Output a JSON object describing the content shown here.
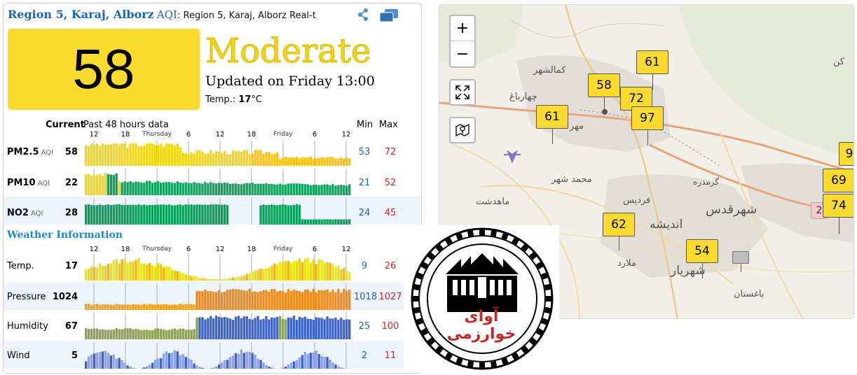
{
  "header": {
    "region": "Region 5, Karaj, Alborz",
    "aqi_suffix": "AQI",
    "colon": ":",
    "subtitle": "Region 5, Karaj, Alborz Real-t"
  },
  "aqi": {
    "value": "58",
    "level": "Moderate",
    "updated": "Updated on Friday 13:00",
    "temp_label": "Temp.:",
    "temp_value": "17",
    "temp_unit": "°C",
    "color": "#fbdb2f"
  },
  "columns": {
    "current": "Current",
    "past": "Past 48 hours data",
    "min": "Min",
    "max": "Max"
  },
  "axis": {
    "ticks": [
      "12",
      "18",
      "Thursday",
      "6",
      "12",
      "18",
      "Friday",
      "6",
      "12"
    ]
  },
  "pollutants": [
    {
      "name": "PM2.5",
      "unit": "AQI",
      "current": "58",
      "min": "53",
      "max": "72"
    },
    {
      "name": "PM10",
      "unit": "AQI",
      "current": "22",
      "min": "21",
      "max": "52"
    },
    {
      "name": "NO2",
      "unit": "AQI",
      "current": "28",
      "min": "24",
      "max": "45"
    }
  ],
  "weather_title": "Weather Information",
  "weather": [
    {
      "name": "Temp.",
      "current": "17",
      "min": "9",
      "max": "26"
    },
    {
      "name": "Pressure",
      "current": "1024",
      "min": "1018",
      "max": "1027"
    },
    {
      "name": "Humidity",
      "current": "67",
      "min": "25",
      "max": "100"
    },
    {
      "name": "Wind",
      "current": "5",
      "min": "2",
      "max": "11"
    }
  ],
  "logo": {
    "text": "آوای خوارزمی"
  },
  "map": {
    "zoom_in": "+",
    "zoom_out": "−",
    "markers": [
      "61",
      "58",
      "72",
      "97",
      "61",
      "62",
      "54",
      "9",
      "69",
      "74"
    ],
    "places": [
      "کمالشهر",
      "چهارباغ",
      "مهر",
      "محمد شهر",
      "ماهدشت",
      "گرمدره",
      "فردیس",
      "اندیشه",
      "شهرقدس",
      "ملارد",
      "شهریار",
      "باغستان",
      "کن"
    ],
    "road_badge": "2"
  }
}
